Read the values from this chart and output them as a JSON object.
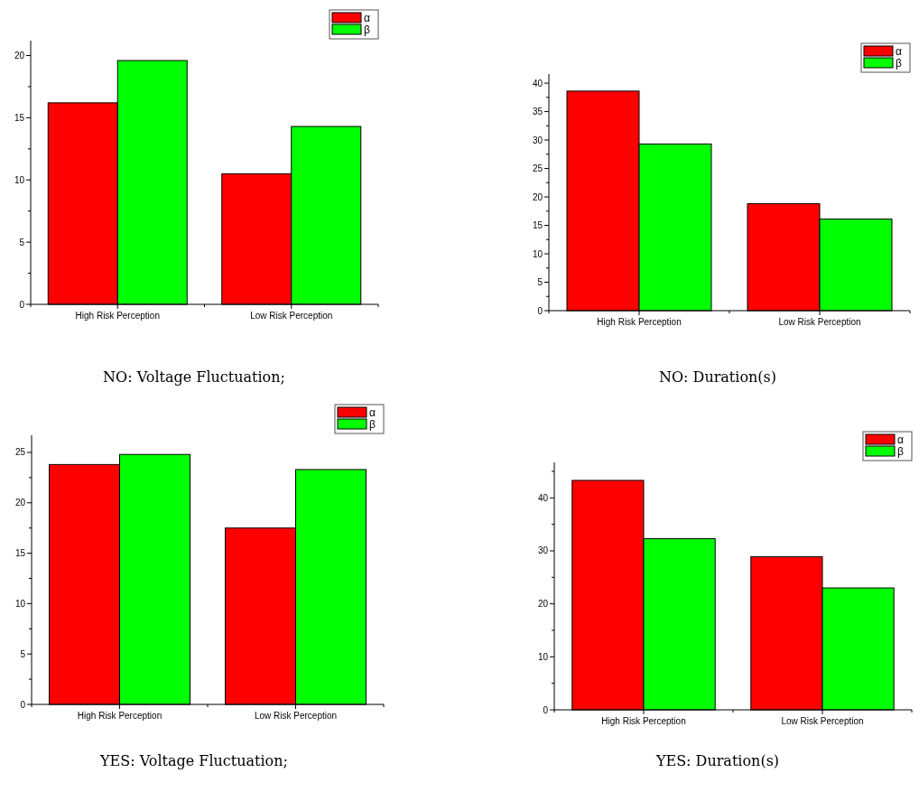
{
  "chart_data": [
    {
      "type": "bar",
      "title": "NO: Voltage Fluctuation;",
      "categories": [
        "High Risk Perception",
        "Low Risk Perception"
      ],
      "series": [
        {
          "name": "α",
          "color": "#ff0000",
          "values": [
            16.2,
            10.5
          ]
        },
        {
          "name": "β",
          "color": "#00ff00",
          "values": [
            19.6,
            14.3
          ]
        }
      ],
      "ylim": [
        0,
        21.2
      ],
      "yticks": [
        0,
        {
          "value": 2.5,
          "label": null
        },
        5,
        {
          "value": 7.5,
          "label": null
        },
        10,
        {
          "value": 12.5,
          "label": null
        },
        15,
        {
          "value": 17.5,
          "label": null
        },
        20
      ],
      "legend": "top right"
    },
    {
      "type": "bar",
      "title": "NO: Duration(s)",
      "categories": [
        "High Risk Perception",
        "Low Risk Perception"
      ],
      "series": [
        {
          "name": "α",
          "color": "#ff0000",
          "values": [
            38.6,
            18.8
          ]
        },
        {
          "name": "β",
          "color": "#00ff00",
          "values": [
            29.3,
            16.1
          ]
        }
      ],
      "ylim": [
        0,
        41.6
      ],
      "yticks": [
        0,
        {
          "value": 2.5,
          "label": null
        },
        5,
        {
          "value": 7.5,
          "label": null
        },
        10,
        {
          "value": 12.5,
          "label": null
        },
        15,
        {
          "value": 17.5,
          "label": null
        },
        20,
        {
          "value": 22.5,
          "label": null
        },
        25,
        {
          "value": 27.5,
          "label": null
        },
        30,
        {
          "value": 32.5,
          "label": null
        },
        35,
        {
          "value": 37.5,
          "label": null
        },
        40
      ],
      "legend": "top right"
    },
    {
      "type": "bar",
      "title": "YES: Voltage Fluctuation;",
      "categories": [
        "High Risk Perception",
        "Low Risk Perception"
      ],
      "series": [
        {
          "name": "α",
          "color": "#ff0000",
          "values": [
            23.8,
            17.5
          ]
        },
        {
          "name": "β",
          "color": "#00ff00",
          "values": [
            24.8,
            23.3
          ]
        }
      ],
      "ylim": [
        0,
        26.7
      ],
      "yticks": [
        0,
        {
          "value": 2.5,
          "label": null
        },
        5,
        {
          "value": 7.5,
          "label": null
        },
        10,
        {
          "value": 12.5,
          "label": null
        },
        15,
        {
          "value": 17.5,
          "label": null
        },
        20,
        {
          "value": 22.5,
          "label": null
        },
        25
      ],
      "legend": "top right"
    },
    {
      "type": "bar",
      "title": "YES: Duration(s)",
      "categories": [
        "High Risk Perception",
        "Low Risk Perception"
      ],
      "series": [
        {
          "name": "α",
          "color": "#ff0000",
          "values": [
            43.3,
            28.9
          ]
        },
        {
          "name": "β",
          "color": "#00ff00",
          "values": [
            32.3,
            23.0
          ]
        }
      ],
      "ylim": [
        0,
        46.7
      ],
      "yticks": [
        0,
        {
          "value": 5,
          "label": null
        },
        10,
        {
          "value": 15,
          "label": null
        },
        20,
        {
          "value": 25,
          "label": null
        },
        30,
        {
          "value": 35,
          "label": null
        },
        40,
        {
          "value": 45,
          "label": null
        }
      ],
      "legend": "top right"
    }
  ]
}
